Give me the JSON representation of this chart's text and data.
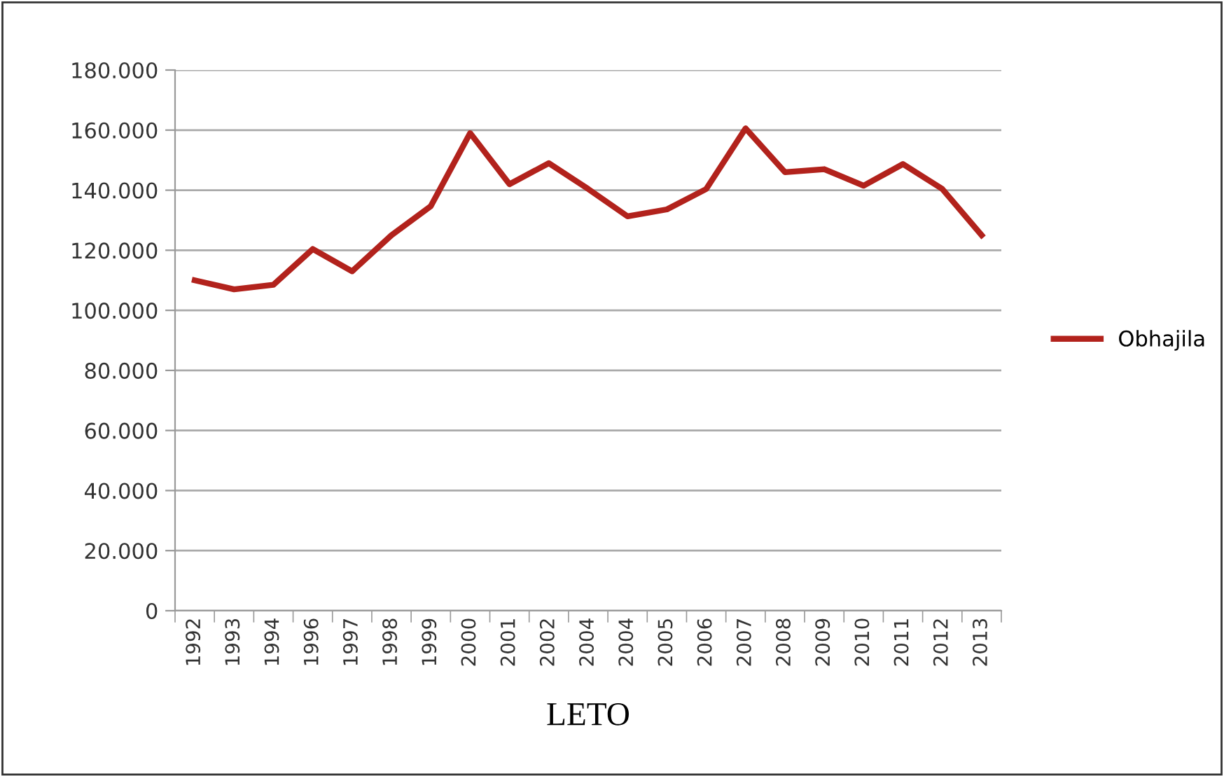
{
  "chart_data": {
    "type": "line",
    "xlabel": "LETO",
    "categories": [
      "1992",
      "1993",
      "1994",
      "1996",
      "1997",
      "1998",
      "1999",
      "2000",
      "2001",
      "2002",
      "2004",
      "2004",
      "2005",
      "2006",
      "2007",
      "2008",
      "2009",
      "2010",
      "2011",
      "2012",
      "2013"
    ],
    "series": [
      {
        "name": "Obhajila",
        "color": "#b2221c",
        "values": [
          110000,
          107000,
          108500,
          120400,
          113000,
          125000,
          134700,
          159000,
          142000,
          149000,
          140400,
          131300,
          133600,
          140400,
          160600,
          146000,
          147000,
          141500,
          148700,
          140400,
          125000
        ]
      }
    ],
    "ylim": [
      0,
      180000
    ],
    "yticks": [
      0,
      {
        "value": 20000,
        "label": "20.000"
      },
      {
        "value": 40000,
        "label": "40.000"
      },
      {
        "value": 60000,
        "label": "60.000"
      },
      {
        "value": 80000,
        "label": "80.000"
      },
      {
        "value": 100000,
        "label": "100.000"
      },
      {
        "value": 120000,
        "label": "120.000"
      },
      {
        "value": 140000,
        "label": "140.000"
      },
      {
        "value": 160000,
        "label": "160.000"
      },
      {
        "value": 180000,
        "label": "180.000"
      }
    ],
    "grid": "y",
    "legend": "right",
    "marker": "none",
    "line_style": "solid"
  }
}
